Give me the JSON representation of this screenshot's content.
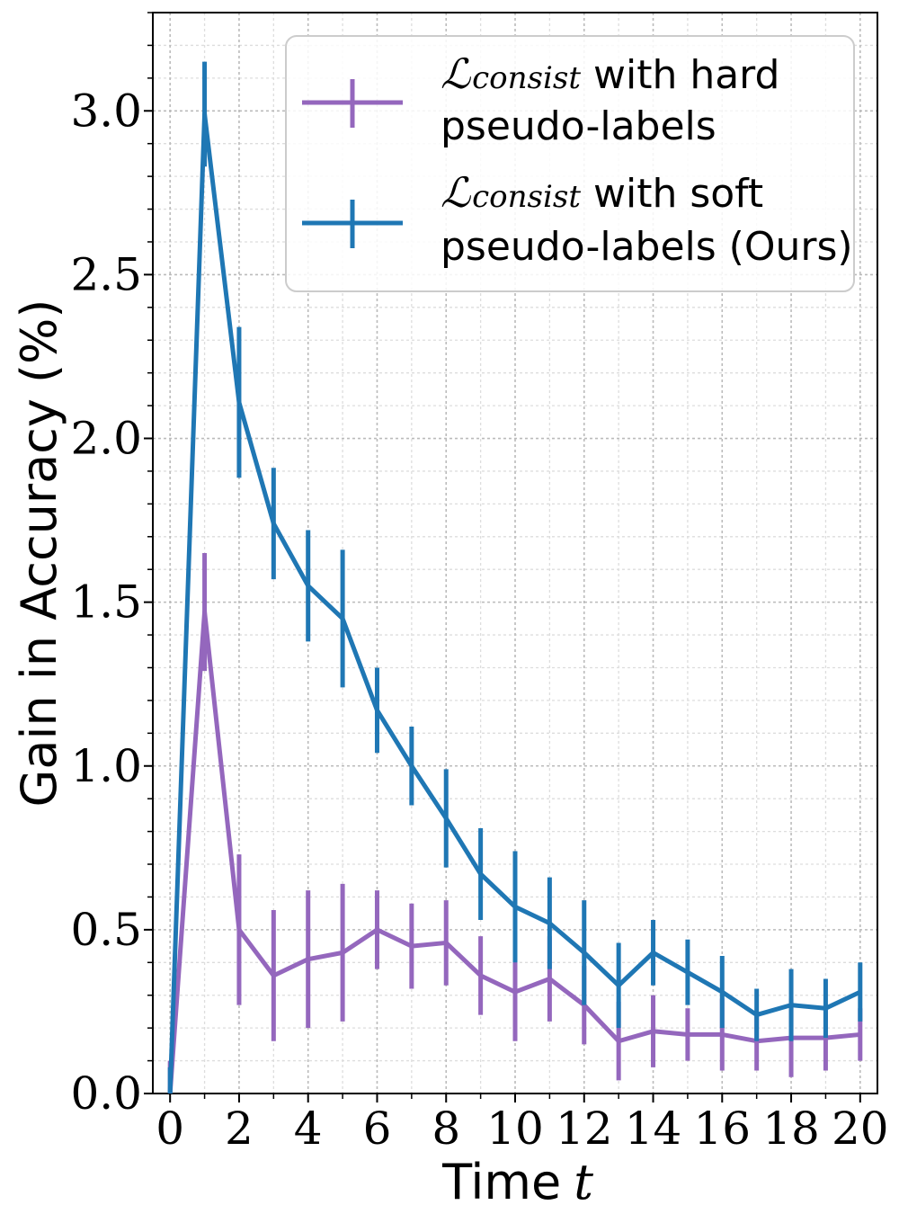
{
  "chart_data": {
    "type": "line",
    "xlabel": "Time",
    "xlabel_var": "t",
    "ylabel": "Gain in Accuracy (%)",
    "xlim": [
      -0.5,
      20.5
    ],
    "ylim": [
      0.0,
      3.3
    ],
    "xticks": [
      0,
      2,
      4,
      6,
      8,
      10,
      12,
      14,
      16,
      18,
      20
    ],
    "xtick_labels": [
      "0",
      "2",
      "4",
      "6",
      "8",
      "10",
      "12",
      "14",
      "16",
      "18",
      "20"
    ],
    "yticks": [
      0.0,
      0.5,
      1.0,
      1.5,
      2.0,
      2.5,
      3.0
    ],
    "ytick_labels": [
      "0.0",
      "0.5",
      "1.0",
      "1.5",
      "2.0",
      "2.5",
      "3.0"
    ],
    "grid": true,
    "legend_position": "top-right",
    "x": [
      0,
      1,
      2,
      3,
      4,
      5,
      6,
      7,
      8,
      9,
      10,
      11,
      12,
      13,
      14,
      15,
      16,
      17,
      18,
      19,
      20
    ],
    "series": [
      {
        "name": "hard",
        "legend_symbol": "ℒ",
        "legend_subscript": "consist",
        "legend_line1": "with hard",
        "legend_line2": "pseudo-labels",
        "color": "#9467bd",
        "values": [
          0.0,
          1.47,
          0.5,
          0.36,
          0.41,
          0.43,
          0.5,
          0.45,
          0.46,
          0.36,
          0.31,
          0.35,
          0.27,
          0.16,
          0.19,
          0.18,
          0.18,
          0.16,
          0.17,
          0.17,
          0.18
        ],
        "errors": [
          0.1,
          0.18,
          0.23,
          0.2,
          0.21,
          0.21,
          0.12,
          0.13,
          0.13,
          0.12,
          0.15,
          0.13,
          0.12,
          0.12,
          0.11,
          0.08,
          0.11,
          0.09,
          0.12,
          0.1,
          0.08
        ]
      },
      {
        "name": "soft",
        "legend_symbol": "ℒ",
        "legend_subscript": "consist",
        "legend_line1": "with soft",
        "legend_line2": "pseudo-labels (Ours)",
        "color": "#1f77b4",
        "values": [
          0.0,
          2.99,
          2.11,
          1.74,
          1.55,
          1.45,
          1.17,
          1.0,
          0.84,
          0.67,
          0.57,
          0.52,
          0.43,
          0.33,
          0.43,
          0.37,
          0.31,
          0.24,
          0.27,
          0.26,
          0.31
        ],
        "errors": [
          0.08,
          0.16,
          0.23,
          0.17,
          0.17,
          0.21,
          0.13,
          0.12,
          0.15,
          0.14,
          0.17,
          0.14,
          0.16,
          0.13,
          0.1,
          0.1,
          0.11,
          0.08,
          0.11,
          0.09,
          0.09
        ]
      }
    ]
  }
}
